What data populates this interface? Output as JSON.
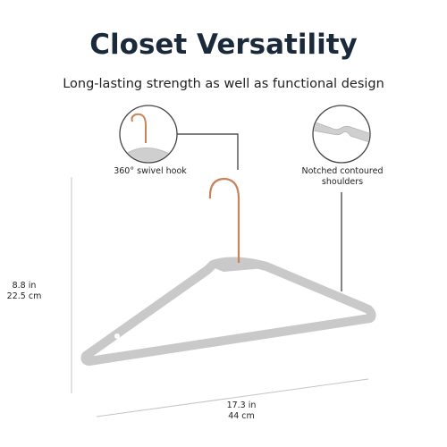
{
  "title": "Closet Versatility",
  "subtitle": "Long-lasting strength as well as functional design",
  "callouts": {
    "hook": "360° swivel hook",
    "notch_line1": "Notched contoured",
    "notch_line2": "shoulders"
  },
  "dimensions": {
    "height_in": "8.8 in",
    "height_cm": "22.5 cm",
    "width_in": "17.3 in",
    "width_cm": "44 cm"
  },
  "colors": {
    "title": "#1b2a3a",
    "hanger": "#c9c9c9",
    "hook": "#c9835a",
    "lines": "#b5b5b5"
  }
}
